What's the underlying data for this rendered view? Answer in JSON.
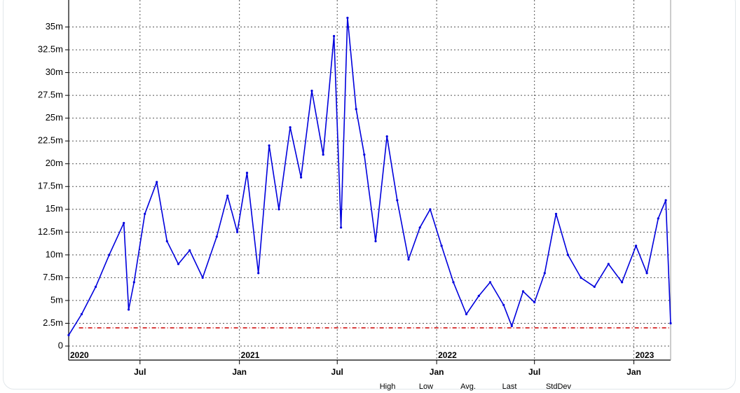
{
  "chart_data": {
    "type": "line",
    "title": "",
    "xlabel": "",
    "ylabel": "",
    "y_ticks": [
      "0",
      "2.5m",
      "5m",
      "7.5m",
      "10m",
      "12.5m",
      "15m",
      "17.5m",
      "20m",
      "22.5m",
      "25m",
      "27.5m",
      "30m",
      "32.5m",
      "35m"
    ],
    "x_month_ticks": [
      "Jul",
      "Jan",
      "Jul",
      "Jan",
      "Jul",
      "Jan"
    ],
    "x_year_ticks": [
      "2020",
      "2021",
      "2022",
      "2023"
    ],
    "ylim": [
      0,
      37500000
    ],
    "xlim": [
      "2020-02-20",
      "2023-03-10"
    ],
    "grid": true,
    "stats_labels": [
      "High",
      "Low",
      "Avg.",
      "Last",
      "StdDev"
    ],
    "colors": {
      "series": "#0000dd",
      "reference": "#cc0000",
      "grid": "#555555"
    },
    "series": [
      {
        "x": [
          "2020-02-20",
          "2020-03-15",
          "2020-04-10",
          "2020-05-05",
          "2020-06-01",
          "2020-06-10",
          "2020-06-20",
          "2020-07-10",
          "2020-08-01",
          "2020-08-20",
          "2020-09-10",
          "2020-10-01",
          "2020-10-25",
          "2020-11-20",
          "2020-12-10",
          "2020-12-28",
          "2021-01-15",
          "2021-02-05",
          "2021-02-25",
          "2021-03-15",
          "2021-04-05",
          "2021-04-25",
          "2021-05-15",
          "2021-06-05",
          "2021-06-25",
          "2021-07-08",
          "2021-07-20",
          "2021-08-05",
          "2021-08-20",
          "2021-09-10",
          "2021-10-01",
          "2021-10-20",
          "2021-11-10",
          "2021-12-01",
          "2021-12-20",
          "2022-01-10",
          "2022-02-01",
          "2022-02-25",
          "2022-03-20",
          "2022-04-10",
          "2022-05-05",
          "2022-05-20",
          "2022-06-10",
          "2022-07-01",
          "2022-07-20",
          "2022-08-10",
          "2022-09-01",
          "2022-09-25",
          "2022-10-20",
          "2022-11-15",
          "2022-12-10",
          "2023-01-05",
          "2023-01-25",
          "2023-02-15",
          "2023-03-01",
          "2023-03-10"
        ],
        "values": [
          1200000,
          3500000,
          6500000,
          10000000,
          13500000,
          4000000,
          7000000,
          14500000,
          18000000,
          11500000,
          9000000,
          10500000,
          7500000,
          12000000,
          16500000,
          12500000,
          19000000,
          8000000,
          22000000,
          15000000,
          24000000,
          18500000,
          28000000,
          21000000,
          34000000,
          13000000,
          36000000,
          26000000,
          21000000,
          11500000,
          23000000,
          16000000,
          9500000,
          13000000,
          15000000,
          11000000,
          7000000,
          3500000,
          5500000,
          7000000,
          4500000,
          2200000,
          6000000,
          4800000,
          8000000,
          14500000,
          10000000,
          7500000,
          6500000,
          9000000,
          7000000,
          11000000,
          8000000,
          14000000,
          16000000,
          2500000
        ]
      },
      {
        "values": [
          2000000
        ],
        "x_range": [
          "2020-03-10",
          "2023-03-10"
        ]
      }
    ]
  }
}
